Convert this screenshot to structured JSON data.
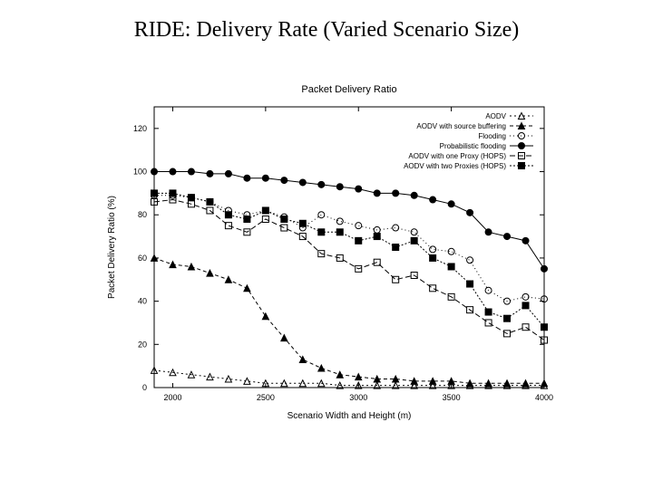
{
  "slide": {
    "title": "RIDE: Delivery Rate (Varied Scenario Size)"
  },
  "chart": {
    "type": "line",
    "title": "Packet Delivery Ratio",
    "title_fontsize": 11,
    "xlabel": "Scenario Width and Height (m)",
    "ylabel": "Packet Delivery Ratio (%)",
    "label_fontsize": 10,
    "tick_fontsize": 9,
    "background_color": "#ffffff",
    "axis_color": "#000000",
    "line_width": 1,
    "marker_size": 3.5,
    "xlim": [
      1900,
      4000
    ],
    "ylim": [
      0,
      130
    ],
    "xticks": [
      2000,
      2500,
      3000,
      3500,
      4000
    ],
    "yticks": [
      0,
      20,
      40,
      60,
      80,
      100,
      120
    ],
    "legend": {
      "position": "top-right",
      "fontsize": 8,
      "entries": [
        {
          "label": "AODV",
          "series": "aodv"
        },
        {
          "label": "AODV with source buffering",
          "series": "aodv_sb"
        },
        {
          "label": "Flooding",
          "series": "flooding"
        },
        {
          "label": "Probabilistic flooding",
          "series": "prob_flood"
        },
        {
          "label": "AODV with one Proxy (HOPS)",
          "series": "proxy1"
        },
        {
          "label": "AODV with two Proxies (HOPS)",
          "series": "proxy2"
        }
      ]
    },
    "x": [
      1900,
      2000,
      2100,
      2200,
      2300,
      2400,
      2500,
      2600,
      2700,
      2800,
      2900,
      3000,
      3100,
      3200,
      3300,
      3400,
      3500,
      3600,
      3700,
      3800,
      3900,
      4000
    ],
    "series": {
      "aodv": {
        "color": "#000000",
        "marker": "triangle-open",
        "dash": "2,3",
        "y": [
          8,
          7,
          6,
          5,
          4,
          3,
          2,
          2,
          2,
          2,
          1,
          1,
          1,
          1,
          1,
          1,
          1,
          1,
          1,
          1,
          1,
          1
        ]
      },
      "aodv_sb": {
        "color": "#000000",
        "marker": "triangle-filled",
        "dash": "4,3",
        "y": [
          60,
          57,
          56,
          53,
          50,
          46,
          33,
          23,
          13,
          9,
          6,
          5,
          4,
          4,
          3,
          3,
          3,
          2,
          2,
          2,
          2,
          2
        ]
      },
      "flooding": {
        "color": "#000000",
        "marker": "circle-open",
        "dash": "1,3",
        "y": [
          89,
          89,
          88,
          86,
          82,
          80,
          82,
          79,
          74,
          80,
          77,
          75,
          73,
          74,
          72,
          64,
          63,
          59,
          45,
          40,
          42,
          41
        ]
      },
      "prob_flood": {
        "color": "#000000",
        "marker": "circle-filled",
        "dash": "none",
        "y": [
          100,
          100,
          100,
          99,
          99,
          97,
          97,
          96,
          95,
          94,
          93,
          92,
          90,
          90,
          89,
          87,
          85,
          81,
          72,
          70,
          68,
          55
        ]
      },
      "proxy1": {
        "color": "#000000",
        "marker": "square-open",
        "dash": "6,3",
        "y": [
          86,
          87,
          85,
          82,
          75,
          72,
          78,
          74,
          70,
          62,
          60,
          55,
          58,
          50,
          52,
          46,
          42,
          36,
          30,
          25,
          28,
          22
        ]
      },
      "proxy2": {
        "color": "#000000",
        "marker": "square-filled",
        "dash": "2,2",
        "y": [
          90,
          90,
          88,
          86,
          80,
          78,
          82,
          78,
          76,
          72,
          72,
          68,
          70,
          65,
          68,
          60,
          56,
          48,
          35,
          32,
          38,
          28
        ]
      }
    }
  }
}
